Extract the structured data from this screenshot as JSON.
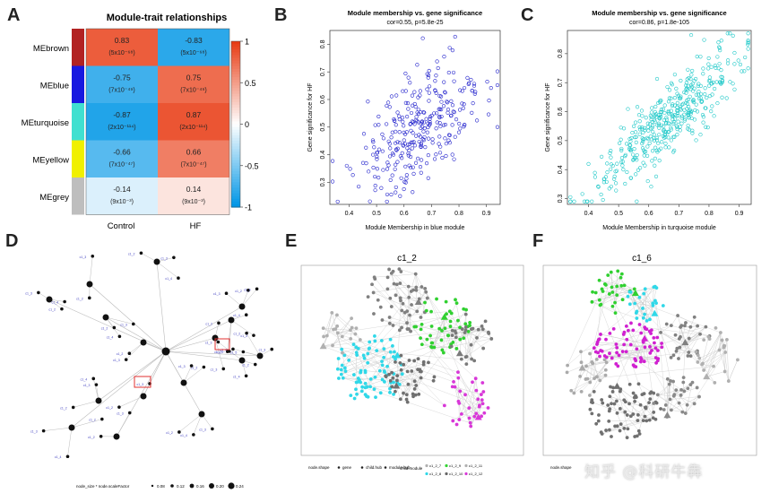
{
  "panels": {
    "A": "A",
    "B": "B",
    "C": "C",
    "D": "D",
    "E": "E",
    "F": "F"
  },
  "heatmap": {
    "title": "Module-trait relationships",
    "columns": [
      "Control",
      "HF"
    ],
    "rows": [
      {
        "name": "MEbrown",
        "color": "#b22222",
        "cells": [
          {
            "v": "0.83",
            "p": "(5x10⁻⁶⁸)",
            "val": 0.83
          },
          {
            "v": "-0.83",
            "p": "(5x10⁻⁶⁸)",
            "val": -0.83
          }
        ]
      },
      {
        "name": "MEblue",
        "color": "#1818e0",
        "cells": [
          {
            "v": "-0.75",
            "p": "(7x10⁻⁴⁹)",
            "val": -0.75
          },
          {
            "v": "0.75",
            "p": "(7x10⁻⁴⁹)",
            "val": 0.75
          }
        ]
      },
      {
        "name": "MEturquoise",
        "color": "#40e0d0",
        "cells": [
          {
            "v": "-0.87",
            "p": "(2x10⁻¹¹⁴)",
            "val": -0.87
          },
          {
            "v": "0.87",
            "p": "(2x10⁻¹¹⁴)",
            "val": 0.87
          }
        ]
      },
      {
        "name": "MEyellow",
        "color": "#f0f000",
        "cells": [
          {
            "v": "-0.66",
            "p": "(7x10⁻⁴⁷)",
            "val": -0.66
          },
          {
            "v": "0.66",
            "p": "(7x10⁻⁴⁷)",
            "val": 0.66
          }
        ]
      },
      {
        "name": "MEgrey",
        "color": "#bebebe",
        "cells": [
          {
            "v": "-0.14",
            "p": "(9x10⁻³)",
            "val": -0.14
          },
          {
            "v": "0.14",
            "p": "(9x10⁻³)",
            "val": 0.14
          }
        ]
      }
    ],
    "scale": {
      "ticks": [
        "1",
        "0.5",
        "0",
        "-0.5",
        "-1"
      ]
    }
  },
  "chart_data": [
    {
      "type": "scatter",
      "title": "Module membership vs. gene significance",
      "subtitle": "cor=0.55, p=5.8e-25",
      "xlabel": "Module Membership in blue module",
      "ylabel": "Gene significance for HF",
      "xlim": [
        0.33,
        0.95
      ],
      "ylim": [
        0.22,
        0.85
      ],
      "xticks": [
        "0.4",
        "0.5",
        "0.6",
        "0.7",
        "0.8",
        "0.9"
      ],
      "yticks": [
        "0.3",
        "0.4",
        "0.5",
        "0.6",
        "0.7",
        "0.8"
      ],
      "color": "#2222cc",
      "n_points": 300,
      "x_mean": 0.66,
      "x_sd": 0.12,
      "y_mean": 0.5,
      "y_sd": 0.12,
      "cor": 0.55
    },
    {
      "type": "scatter",
      "title": "Module membership vs. gene significance",
      "subtitle": "cor=0.86, p=1.8e-105",
      "xlabel": "Module Membership in turquoise module",
      "ylabel": "Gene significance for HF",
      "xlim": [
        0.33,
        0.94
      ],
      "ylim": [
        0.28,
        0.88
      ],
      "xticks": [
        "0.4",
        "0.5",
        "0.6",
        "0.7",
        "0.8",
        "0.9"
      ],
      "yticks": [
        "0.3",
        "0.4",
        "0.5",
        "0.6",
        "0.7",
        "0.8"
      ],
      "color": "#1ec8c8",
      "n_points": 420,
      "x_mean": 0.65,
      "x_sd": 0.12,
      "y_mean": 0.56,
      "y_sd": 0.12,
      "cor": 0.86
    }
  ],
  "treeD": {
    "legend": "node_size * node.scaleFactor",
    "legend_values": [
      "0.08",
      "0.12",
      "0.16",
      "0.20",
      "0.24"
    ]
  },
  "netE": {
    "title": "c1_2",
    "shape_label": "node.shape",
    "shapes": [
      "gene",
      "child.hub",
      "module.hub"
    ],
    "child_label": "child.module",
    "children": [
      "c1_2_7",
      "c1_2_9",
      "c1_2_11",
      "c1_2_8",
      "c1_2_10",
      "c1_2_12"
    ],
    "child_colors": [
      "#b0b0b0",
      "#34d434",
      "#b0b0b0",
      "#30d8e8",
      "#666666",
      "#d838d8"
    ]
  },
  "netF": {
    "title": "c1_6",
    "shape_label": "node.shape"
  },
  "watermark": "知乎 @科研牛犇"
}
